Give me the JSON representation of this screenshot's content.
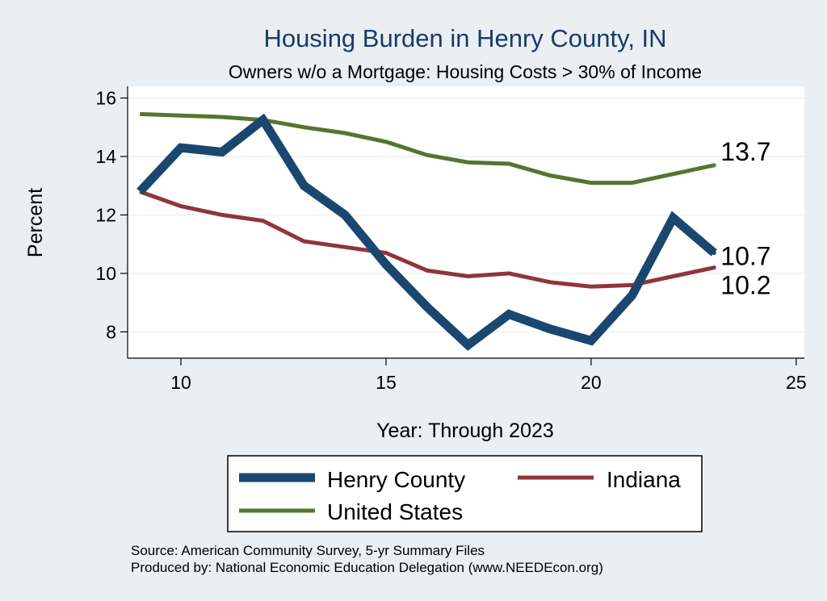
{
  "chart_data": {
    "type": "line",
    "title": "Housing Burden in Henry County, IN",
    "subtitle": "Owners w/o a Mortgage: Housing Costs > 30% of Income",
    "xlabel": "Year: Through 2023",
    "ylabel": "Percent",
    "xlim": [
      8.7,
      25.2
    ],
    "ylim": [
      7.1,
      16.4
    ],
    "x_ticks": [
      10,
      15,
      20,
      25
    ],
    "y_ticks": [
      8,
      10,
      12,
      14,
      16
    ],
    "grid": true,
    "legend_position": "bottom",
    "series": [
      {
        "name": "Henry County",
        "color": "#1a476f",
        "x": [
          9,
          10,
          11,
          12,
          13,
          14,
          15,
          16,
          17,
          18,
          19,
          20,
          21,
          22,
          23
        ],
        "values": [
          12.8,
          14.3,
          14.15,
          15.25,
          13.0,
          12.0,
          10.3,
          8.85,
          7.55,
          8.6,
          8.1,
          7.7,
          9.25,
          11.9,
          10.7
        ],
        "end_label": "10.7"
      },
      {
        "name": "Indiana",
        "color": "#90353b",
        "x": [
          9,
          10,
          11,
          12,
          13,
          14,
          15,
          16,
          17,
          18,
          19,
          20,
          21,
          22,
          23
        ],
        "values": [
          12.8,
          12.3,
          12.0,
          11.8,
          11.1,
          10.9,
          10.7,
          10.1,
          9.9,
          10.0,
          9.7,
          9.55,
          9.6,
          9.9,
          10.2
        ],
        "end_label": "10.2"
      },
      {
        "name": "United States",
        "color": "#55752f",
        "x": [
          9,
          10,
          11,
          12,
          13,
          14,
          15,
          16,
          17,
          18,
          19,
          20,
          21,
          22,
          23
        ],
        "values": [
          15.45,
          15.4,
          15.35,
          15.25,
          15.0,
          14.8,
          14.5,
          14.05,
          13.8,
          13.75,
          13.35,
          13.1,
          13.1,
          13.4,
          13.7
        ],
        "end_label": "13.7"
      }
    ],
    "source_lines": [
      "Source: American Community Survey, 5-yr Summary Files",
      "Produced by: National Economic Education Delegation (www.NEEDEcon.org)"
    ]
  }
}
